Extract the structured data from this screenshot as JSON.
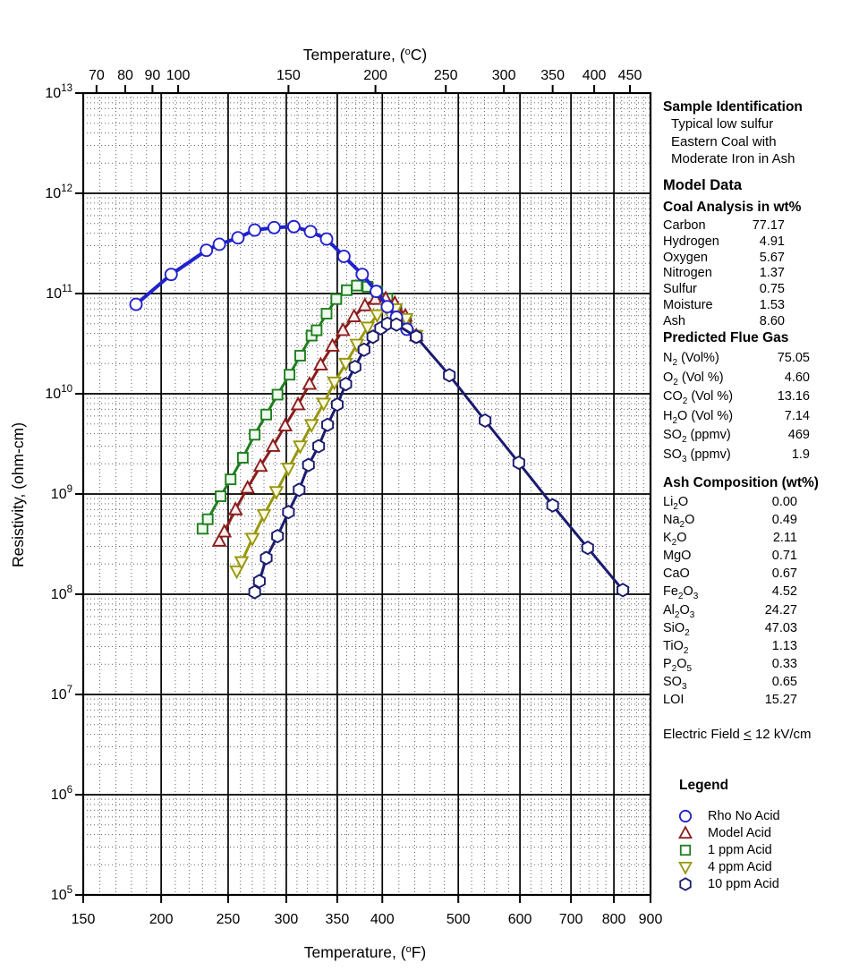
{
  "chart_data": {
    "type": "line",
    "title": "",
    "x_axis": {
      "label_pre": "Temperature, (",
      "label_deg": "o",
      "label_post": "F)",
      "scale": "arrhenius-inverse-absolute-temperature",
      "range_F": [
        150,
        900
      ],
      "ticks_F": [
        150,
        200,
        250,
        300,
        350,
        400,
        500,
        600,
        700,
        800,
        900
      ]
    },
    "top_axis": {
      "label_pre": "Temperature, (",
      "label_deg": "o",
      "label_post": "C)",
      "ticks_C": [
        70,
        80,
        90,
        100,
        150,
        200,
        250,
        300,
        350,
        400,
        450
      ]
    },
    "y_axis": {
      "label": "Resistivity, (ohm-cm)",
      "scale": "log",
      "exp_min": 5,
      "exp_max": 13,
      "unit_base": "10"
    },
    "grid": {
      "major": true,
      "minor_dotted": true
    },
    "series": [
      {
        "name": "1 ppm Acid",
        "marker": "square",
        "color": "#1E7E1E",
        "marker_fill": "#EDFAED",
        "points": [
          [
            230,
            450000000.0
          ],
          [
            234,
            560000000.0
          ],
          [
            244,
            950000000.0
          ],
          [
            252,
            1400000000.0
          ],
          [
            262,
            2300000000.0
          ],
          [
            272,
            3900000000.0
          ],
          [
            282,
            6200000000.0
          ],
          [
            292,
            9800000000.0
          ],
          [
            303,
            15500000000.0
          ],
          [
            313,
            24000000000.0
          ],
          [
            324,
            38000000000.0
          ],
          [
            329,
            43000000000.0
          ],
          [
            339,
            63000000000.0
          ],
          [
            349,
            88000000000.0
          ],
          [
            360,
            108000000000.0
          ],
          [
            371,
            120000000000.0
          ],
          [
            383,
            117000000000.0
          ],
          [
            394,
            105000000000.0
          ],
          [
            406,
            89000000000.0
          ],
          [
            417,
            70000000000.0
          ],
          [
            429,
            52000000000.0
          ],
          [
            442,
            38000000000.0
          ]
        ]
      },
      {
        "name": "Model Acid",
        "marker": "triangle-up",
        "color": "#8B1C1C",
        "marker_fill": "#FBEFEF",
        "points": [
          [
            243,
            340000000.0
          ],
          [
            247,
            420000000.0
          ],
          [
            256,
            700000000.0
          ],
          [
            266,
            1150000000.0
          ],
          [
            277,
            1900000000.0
          ],
          [
            288,
            3000000000.0
          ],
          [
            299,
            4800000000.0
          ],
          [
            311,
            7800000000.0
          ],
          [
            322,
            12500000000.0
          ],
          [
            333,
            19500000000.0
          ],
          [
            345,
            30000000000.0
          ],
          [
            356,
            43000000000.0
          ],
          [
            368,
            59000000000.0
          ],
          [
            380,
            76000000000.0
          ],
          [
            392,
            88000000000.0
          ],
          [
            404,
            89000000000.0
          ],
          [
            415,
            80000000000.0
          ],
          [
            428,
            60000000000.0
          ],
          [
            442,
            38000000000.0
          ]
        ]
      },
      {
        "name": "4 ppm Acid",
        "marker": "triangle-down",
        "color": "#97970F",
        "marker_fill": "#FAFAE2",
        "points": [
          [
            257,
            170000000.0
          ],
          [
            261,
            210000000.0
          ],
          [
            270,
            360000000.0
          ],
          [
            280,
            620000000.0
          ],
          [
            291,
            1050000000.0
          ],
          [
            302,
            1800000000.0
          ],
          [
            313,
            3000000000.0
          ],
          [
            324,
            4900000000.0
          ],
          [
            336,
            8000000000.0
          ],
          [
            347,
            13000000000.0
          ],
          [
            359,
            20000000000.0
          ],
          [
            371,
            31000000000.0
          ],
          [
            383,
            46000000000.0
          ],
          [
            394,
            61000000000.0
          ],
          [
            405,
            71000000000.0
          ],
          [
            416,
            70000000000.0
          ],
          [
            429,
            56000000000.0
          ],
          [
            442,
            38000000000.0
          ]
        ]
      },
      {
        "name": "Rho No Acid",
        "marker": "circle",
        "color": "#2222CC",
        "marker_fill": "#FFFFFF",
        "line_width": 4,
        "points": [
          [
            183,
            78000000000.0
          ],
          [
            207,
            155000000000.0
          ],
          [
            233,
            270000000000.0
          ],
          [
            243,
            310000000000.0
          ],
          [
            258,
            360000000000.0
          ],
          [
            272,
            430000000000.0
          ],
          [
            289,
            455000000000.0
          ],
          [
            307,
            465000000000.0
          ],
          [
            323,
            415000000000.0
          ],
          [
            339,
            350000000000.0
          ],
          [
            357,
            235000000000.0
          ],
          [
            377,
            155000000000.0
          ],
          [
            393,
            105000000000.0
          ],
          [
            406,
            74000000000.0
          ],
          [
            417,
            58000000000.0
          ],
          [
            430,
            44000000000.0
          ],
          [
            442,
            37000000000.0
          ]
        ]
      },
      {
        "name": "10 ppm Acid",
        "marker": "hexagon",
        "color": "#1B1B6F",
        "marker_fill": "#FFFFFF",
        "points": [
          [
            272,
            105000000.0
          ],
          [
            276,
            135000000.0
          ],
          [
            282,
            230000000.0
          ],
          [
            292,
            380000000.0
          ],
          [
            302,
            660000000.0
          ],
          [
            312,
            1100000000.0
          ],
          [
            321,
            1950000000.0
          ],
          [
            331,
            3000000000.0
          ],
          [
            340,
            4900000000.0
          ],
          [
            350,
            7800000000.0
          ],
          [
            359,
            12500000000.0
          ],
          [
            369,
            18500000000.0
          ],
          [
            379,
            27500000000.0
          ],
          [
            389,
            37000000000.0
          ],
          [
            398,
            45000000000.0
          ],
          [
            406,
            50000000000.0
          ],
          [
            417,
            49000000000.0
          ],
          [
            442,
            37000000000.0
          ],
          [
            487,
            15300000000.0
          ],
          [
            541,
            5400000000.0
          ],
          [
            598,
            2050000000.0
          ],
          [
            662,
            770000000.0
          ],
          [
            737,
            290000000.0
          ],
          [
            823,
            110000000.0
          ]
        ]
      }
    ],
    "legend_position": "right-bottom"
  },
  "side_panel": {
    "sample_identification": {
      "title": "Sample Identification",
      "lines": [
        "Typical low sulfur",
        "Eastern Coal with",
        "Moderate Iron in Ash"
      ]
    },
    "model_data_title": "Model Data",
    "coal_analysis": {
      "title": "Coal Analysis in wt%",
      "rows": [
        {
          "label": "Carbon",
          "value": "77.17"
        },
        {
          "label": "Hydrogen",
          "value": "4.91"
        },
        {
          "label": "Oxygen",
          "value": "5.67"
        },
        {
          "label": "Nitrogen",
          "value": "1.37"
        },
        {
          "label": "Sulfur",
          "value": "0.75"
        },
        {
          "label": "Moisture",
          "value": "1.53"
        },
        {
          "label": "Ash",
          "value": "8.60"
        }
      ]
    },
    "flue_gas": {
      "title": "Predicted Flue Gas",
      "rows": [
        {
          "formula": "N2",
          "suffix": " (Vol%)",
          "value": "75.05"
        },
        {
          "formula": "O2",
          "suffix": " (Vol %)",
          "value": "4.60"
        },
        {
          "formula": "CO2",
          "suffix": " (Vol %)",
          "value": "13.16"
        },
        {
          "formula": "H2O",
          "suffix": " (Vol %)",
          "value": "7.14"
        },
        {
          "formula": "SO2",
          "suffix": " (ppmv)",
          "value": "469"
        },
        {
          "formula": "SO3",
          "suffix": " (ppmv)",
          "value": "1.9"
        }
      ]
    },
    "ash_composition": {
      "title": "Ash Composition (wt%)",
      "rows": [
        {
          "formula": "Li2O",
          "value": "0.00"
        },
        {
          "formula": "Na2O",
          "value": "0.49"
        },
        {
          "formula": "K2O",
          "value": "2.11"
        },
        {
          "formula": "MgO",
          "value": "0.71"
        },
        {
          "formula": "CaO",
          "value": "0.67"
        },
        {
          "formula": "Fe2O3",
          "value": "4.52"
        },
        {
          "formula": "Al2O3",
          "value": "24.27"
        },
        {
          "formula": "SiO2",
          "value": "47.03"
        },
        {
          "formula": "TiO2",
          "value": "1.13"
        },
        {
          "formula": "P2O5",
          "value": "0.33"
        },
        {
          "formula": "SO3",
          "value": "0.65"
        },
        {
          "formula": "LOI",
          "value": "15.27"
        }
      ]
    },
    "electric_field": {
      "pre": "Electric Field ",
      "op": "<",
      "post": " 12 kV/cm"
    },
    "legend": {
      "title": "Legend",
      "items": [
        {
          "label": "Rho No Acid",
          "marker": "circle",
          "color": "#2222CC"
        },
        {
          "label": "Model Acid",
          "marker": "triangle-up",
          "color": "#8B1C1C"
        },
        {
          "label": "1 ppm Acid",
          "marker": "square",
          "color": "#1E7E1E"
        },
        {
          "label": "4 ppm Acid",
          "marker": "triangle-down",
          "color": "#97970F"
        },
        {
          "label": "10 ppm Acid",
          "marker": "hexagon",
          "color": "#1B1B6F"
        }
      ]
    }
  }
}
